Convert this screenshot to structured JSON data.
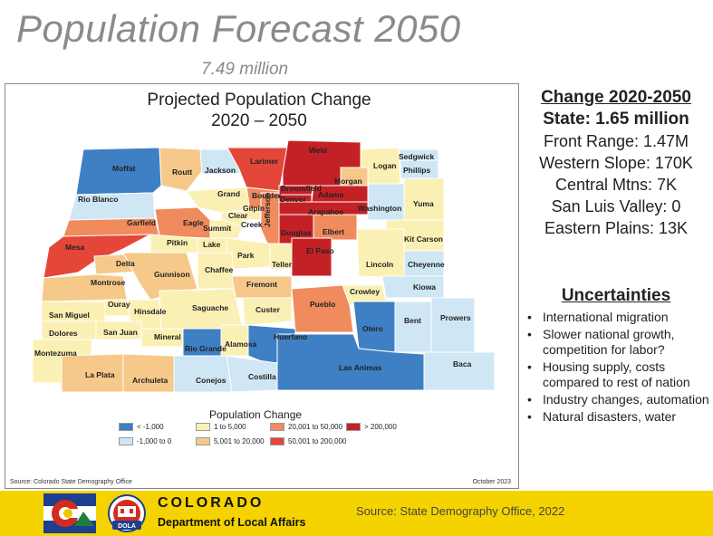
{
  "header": {
    "title": "Population Forecast 2050",
    "subtitle": "7.49 million"
  },
  "map": {
    "title_line1": "Projected Population Change",
    "title_line2": "2020 – 2050",
    "source": "Source: Colorado State Demography Office",
    "date": "October 2023",
    "legend_title": "Population Change",
    "legend": [
      {
        "label": "< -1,000",
        "color": "#3f7fc4"
      },
      {
        "label": "-1,000 to 0",
        "color": "#cfe6f5"
      },
      {
        "label": "1 to 5,000",
        "color": "#fbf0b4"
      },
      {
        "label": "5,001 to 20,000",
        "color": "#f6c98a"
      },
      {
        "label": "20,001 to 50,000",
        "color": "#ef8b5c"
      },
      {
        "label": "50,001 to 200,000",
        "color": "#e4473a"
      },
      {
        "label": "> 200,000",
        "color": "#c42126"
      }
    ],
    "counties": [
      {
        "name": "Moffat",
        "change_class": "< -1,000"
      },
      {
        "name": "Routt",
        "change_class": "5,001 to 20,000"
      },
      {
        "name": "Jackson",
        "change_class": "-1,000 to 0"
      },
      {
        "name": "Larimer",
        "change_class": "50,001 to 200,000"
      },
      {
        "name": "Weld",
        "change_class": "> 200,000"
      },
      {
        "name": "Logan",
        "change_class": "1 to 5,000"
      },
      {
        "name": "Sedgwick",
        "change_class": "-1,000 to 0"
      },
      {
        "name": "Phillips",
        "change_class": "-1,000 to 0"
      },
      {
        "name": "Morgan",
        "change_class": "5,001 to 20,000"
      },
      {
        "name": "Rio Blanco",
        "change_class": "-1,000 to 0"
      },
      {
        "name": "Grand",
        "change_class": "1 to 5,000"
      },
      {
        "name": "Boulder",
        "change_class": "20,001 to 50,000"
      },
      {
        "name": "Broomfield",
        "change_class": "> 200,000"
      },
      {
        "name": "Adams",
        "change_class": "> 200,000"
      },
      {
        "name": "Denver",
        "change_class": "> 200,000"
      },
      {
        "name": "Washington",
        "change_class": "-1,000 to 0"
      },
      {
        "name": "Yuma",
        "change_class": "1 to 5,000"
      },
      {
        "name": "Garfield",
        "change_class": "20,001 to 50,000"
      },
      {
        "name": "Eagle",
        "change_class": "20,001 to 50,000"
      },
      {
        "name": "Gilpin",
        "change_class": "1 to 5,000"
      },
      {
        "name": "Clear Creek",
        "change_class": "1 to 5,000"
      },
      {
        "name": "Summit",
        "change_class": "1 to 5,000"
      },
      {
        "name": "Jefferson",
        "change_class": "20,001 to 50,000"
      },
      {
        "name": "Arapahoe",
        "change_class": "> 200,000"
      },
      {
        "name": "Douglas",
        "change_class": "> 200,000"
      },
      {
        "name": "Elbert",
        "change_class": "20,001 to 50,000"
      },
      {
        "name": "Kit Carson",
        "change_class": "1 to 5,000"
      },
      {
        "name": "Mesa",
        "change_class": "50,001 to 200,000"
      },
      {
        "name": "Pitkin",
        "change_class": "1 to 5,000"
      },
      {
        "name": "Lake",
        "change_class": "1 to 5,000"
      },
      {
        "name": "Park",
        "change_class": "1 to 5,000"
      },
      {
        "name": "Teller",
        "change_class": "1 to 5,000"
      },
      {
        "name": "El Paso",
        "change_class": "> 200,000"
      },
      {
        "name": "Lincoln",
        "change_class": "1 to 5,000"
      },
      {
        "name": "Cheyenne",
        "change_class": "-1,000 to 0"
      },
      {
        "name": "Delta",
        "change_class": "5,001 to 20,000"
      },
      {
        "name": "Gunnison",
        "change_class": "5,001 to 20,000"
      },
      {
        "name": "Chaffee",
        "change_class": "1 to 5,000"
      },
      {
        "name": "Fremont",
        "change_class": "5,001 to 20,000"
      },
      {
        "name": "Montrose",
        "change_class": "5,001 to 20,000"
      },
      {
        "name": "Kiowa",
        "change_class": "-1,000 to 0"
      },
      {
        "name": "Crowley",
        "change_class": "1 to 5,000"
      },
      {
        "name": "Ouray",
        "change_class": "1 to 5,000"
      },
      {
        "name": "Hinsdale",
        "change_class": "1 to 5,000"
      },
      {
        "name": "Saguache",
        "change_class": "1 to 5,000"
      },
      {
        "name": "Custer",
        "change_class": "1 to 5,000"
      },
      {
        "name": "Pueblo",
        "change_class": "20,001 to 50,000"
      },
      {
        "name": "San Miguel",
        "change_class": "1 to 5,000"
      },
      {
        "name": "Bent",
        "change_class": "-1,000 to 0"
      },
      {
        "name": "Prowers",
        "change_class": "-1,000 to 0"
      },
      {
        "name": "Dolores",
        "change_class": "1 to 5,000"
      },
      {
        "name": "San Juan",
        "change_class": "1 to 5,000"
      },
      {
        "name": "Mineral",
        "change_class": "1 to 5,000"
      },
      {
        "name": "Rio Grande",
        "change_class": "< -1,000"
      },
      {
        "name": "Alamosa",
        "change_class": "1 to 5,000"
      },
      {
        "name": "Huerfano",
        "change_class": "< -1,000"
      },
      {
        "name": "Otero",
        "change_class": "< -1,000"
      },
      {
        "name": "Montezuma",
        "change_class": "1 to 5,000"
      },
      {
        "name": "Las Animas",
        "change_class": "< -1,000"
      },
      {
        "name": "Baca",
        "change_class": "-1,000 to 0"
      },
      {
        "name": "La Plata",
        "change_class": "5,001 to 20,000"
      },
      {
        "name": "Archuleta",
        "change_class": "5,001 to 20,000"
      },
      {
        "name": "Conejos",
        "change_class": "-1,000 to 0"
      },
      {
        "name": "Costilla",
        "change_class": "-1,000 to 0"
      }
    ]
  },
  "summary": {
    "heading": "Change 2020-2050",
    "state": "State: 1.65 million",
    "regions": [
      "Front Range: 1.47M",
      "Western Slope: 170K",
      "Central Mtns: 7K",
      "San Luis Valley: 0",
      "Eastern Plains: 13K"
    ]
  },
  "uncertainties": {
    "heading": "Uncertainties",
    "items": [
      "International migration",
      "Slower national growth, competition for labor?",
      "Housing supply, costs compared to rest of nation",
      "Industry changes, automation",
      "Natural disasters, water"
    ]
  },
  "footer": {
    "logo_text": "COLORADO",
    "department": "Department of Local Affairs",
    "dola_badge": "DOLA",
    "source": "Source:  State Demography Office, 2022"
  }
}
